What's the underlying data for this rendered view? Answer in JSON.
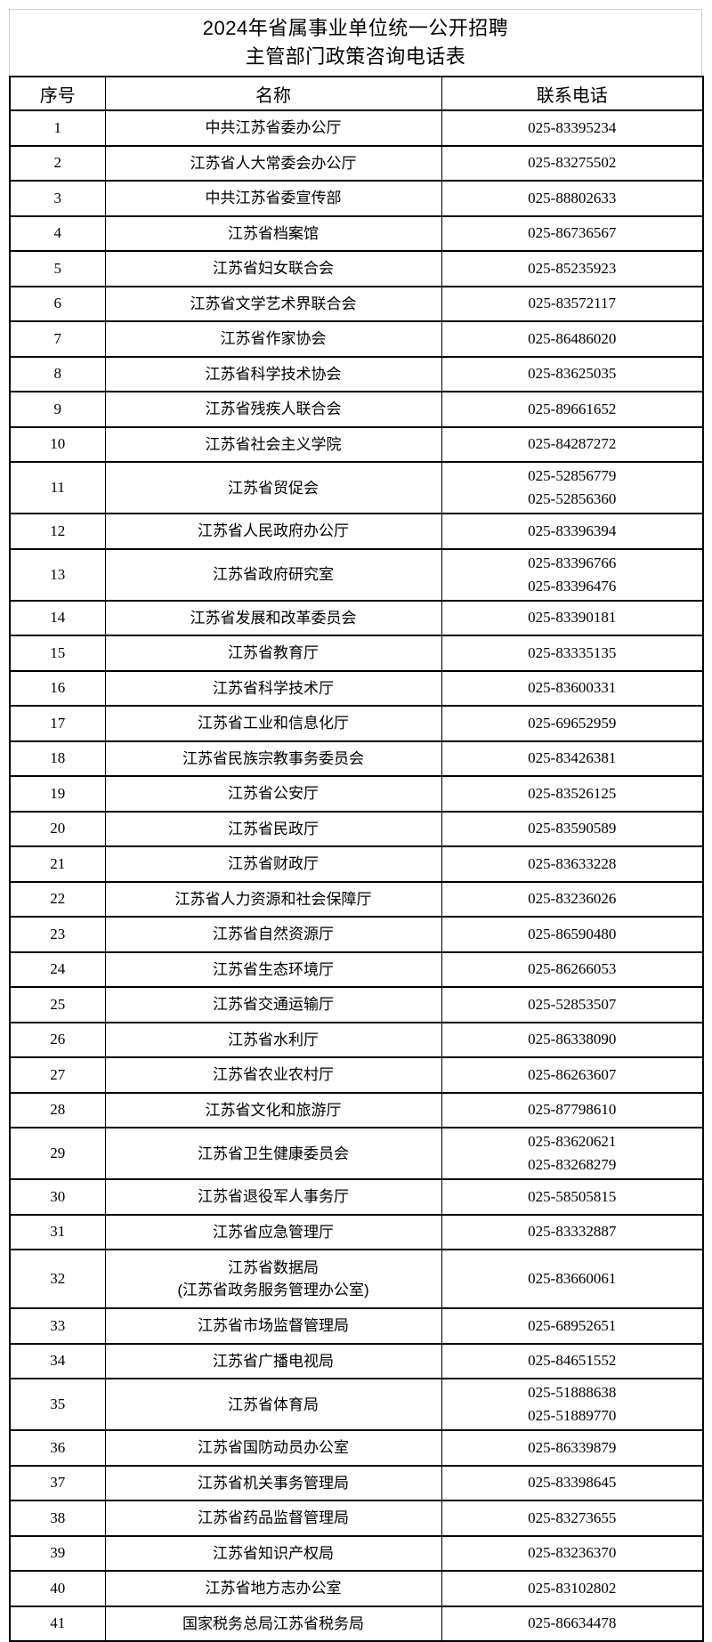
{
  "document": {
    "title_line1": "2024年省属事业单位统一公开招聘",
    "title_line2": "主管部门政策咨询电话表"
  },
  "colors": {
    "title_border": "#c7d0e4",
    "table_border": "#000000",
    "text": "#000000",
    "background": "#ffffff"
  },
  "table": {
    "columns": [
      "序号",
      "名称",
      "联系电话"
    ],
    "rows": [
      {
        "seq": "1",
        "name": "中共江苏省委办公厅",
        "phones": [
          "025-83395234"
        ]
      },
      {
        "seq": "2",
        "name": "江苏省人大常委会办公厅",
        "phones": [
          "025-83275502"
        ]
      },
      {
        "seq": "3",
        "name": "中共江苏省委宣传部",
        "phones": [
          "025-88802633"
        ]
      },
      {
        "seq": "4",
        "name": "江苏省档案馆",
        "phones": [
          "025-86736567"
        ]
      },
      {
        "seq": "5",
        "name": "江苏省妇女联合会",
        "phones": [
          "025-85235923"
        ]
      },
      {
        "seq": "6",
        "name": "江苏省文学艺术界联合会",
        "phones": [
          "025-83572117"
        ]
      },
      {
        "seq": "7",
        "name": "江苏省作家协会",
        "phones": [
          "025-86486020"
        ]
      },
      {
        "seq": "8",
        "name": "江苏省科学技术协会",
        "phones": [
          "025-83625035"
        ]
      },
      {
        "seq": "9",
        "name": "江苏省残疾人联合会",
        "phones": [
          "025-89661652"
        ]
      },
      {
        "seq": "10",
        "name": "江苏省社会主义学院",
        "phones": [
          "025-84287272"
        ]
      },
      {
        "seq": "11",
        "name": "江苏省贸促会",
        "phones": [
          "025-52856779",
          "025-52856360"
        ]
      },
      {
        "seq": "12",
        "name": "江苏省人民政府办公厅",
        "phones": [
          "025-83396394"
        ]
      },
      {
        "seq": "13",
        "name": "江苏省政府研究室",
        "phones": [
          "025-83396766",
          "025-83396476"
        ]
      },
      {
        "seq": "14",
        "name": "江苏省发展和改革委员会",
        "phones": [
          "025-83390181"
        ]
      },
      {
        "seq": "15",
        "name": "江苏省教育厅",
        "phones": [
          "025-83335135"
        ]
      },
      {
        "seq": "16",
        "name": "江苏省科学技术厅",
        "phones": [
          "025-83600331"
        ]
      },
      {
        "seq": "17",
        "name": "江苏省工业和信息化厅",
        "phones": [
          "025-69652959"
        ]
      },
      {
        "seq": "18",
        "name": "江苏省民族宗教事务委员会",
        "phones": [
          "025-83426381"
        ]
      },
      {
        "seq": "19",
        "name": "江苏省公安厅",
        "phones": [
          "025-83526125"
        ]
      },
      {
        "seq": "20",
        "name": "江苏省民政厅",
        "phones": [
          "025-83590589"
        ]
      },
      {
        "seq": "21",
        "name": "江苏省财政厅",
        "phones": [
          "025-83633228"
        ]
      },
      {
        "seq": "22",
        "name": "江苏省人力资源和社会保障厅",
        "phones": [
          "025-83236026"
        ]
      },
      {
        "seq": "23",
        "name": "江苏省自然资源厅",
        "phones": [
          "025-86590480"
        ]
      },
      {
        "seq": "24",
        "name": "江苏省生态环境厅",
        "phones": [
          "025-86266053"
        ]
      },
      {
        "seq": "25",
        "name": "江苏省交通运输厅",
        "phones": [
          "025-52853507"
        ]
      },
      {
        "seq": "26",
        "name": "江苏省水利厅",
        "phones": [
          "025-86338090"
        ]
      },
      {
        "seq": "27",
        "name": "江苏省农业农村厅",
        "phones": [
          "025-86263607"
        ]
      },
      {
        "seq": "28",
        "name": "江苏省文化和旅游厅",
        "phones": [
          "025-87798610"
        ]
      },
      {
        "seq": "29",
        "name": "江苏省卫生健康委员会",
        "phones": [
          "025-83620621",
          "025-83268279"
        ]
      },
      {
        "seq": "30",
        "name": "江苏省退役军人事务厅",
        "phones": [
          "025-58505815"
        ]
      },
      {
        "seq": "31",
        "name": "江苏省应急管理厅",
        "phones": [
          "025-83332887"
        ]
      },
      {
        "seq": "32",
        "name": "江苏省数据局",
        "name_line2": "(江苏省政务服务管理办公室)",
        "phones": [
          "025-83660061"
        ]
      },
      {
        "seq": "33",
        "name": "江苏省市场监督管理局",
        "phones": [
          "025-68952651"
        ]
      },
      {
        "seq": "34",
        "name": "江苏省广播电视局",
        "phones": [
          "025-84651552"
        ]
      },
      {
        "seq": "35",
        "name": "江苏省体育局",
        "phones": [
          "025-51888638",
          "025-51889770"
        ]
      },
      {
        "seq": "36",
        "name": "江苏省国防动员办公室",
        "phones": [
          "025-86339879"
        ]
      },
      {
        "seq": "37",
        "name": "江苏省机关事务管理局",
        "phones": [
          "025-83398645"
        ]
      },
      {
        "seq": "38",
        "name": "江苏省药品监督管理局",
        "phones": [
          "025-83273655"
        ]
      },
      {
        "seq": "39",
        "name": "江苏省知识产权局",
        "phones": [
          "025-83236370"
        ]
      },
      {
        "seq": "40",
        "name": "江苏省地方志办公室",
        "phones": [
          "025-83102802"
        ]
      },
      {
        "seq": "41",
        "name": "国家税务总局江苏省税务局",
        "phones": [
          "025-86634478"
        ]
      }
    ]
  }
}
